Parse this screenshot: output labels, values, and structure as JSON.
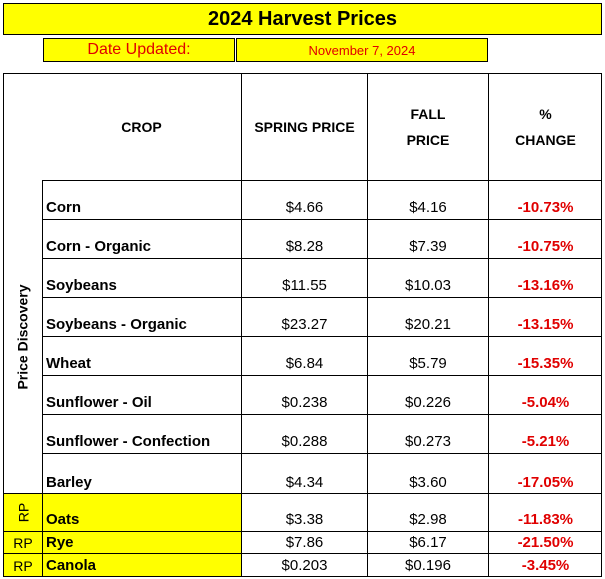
{
  "title": "2024 Harvest Prices",
  "date_label": "Date Updated:",
  "date_value": "November 7, 2024",
  "headers": {
    "crop": "CROP",
    "spring": "SPRING PRICE",
    "fall": "FALL\nPRICE",
    "change": "%\nCHANGE"
  },
  "side_label": "Price Discovery",
  "rows": [
    {
      "crop": "Corn",
      "spring": "$4.66",
      "fall": "$4.16",
      "change": "-10.73%",
      "tag": ""
    },
    {
      "crop": "Corn - Organic",
      "spring": "$8.28",
      "fall": "$7.39",
      "change": "-10.75%",
      "tag": ""
    },
    {
      "crop": "Soybeans",
      "spring": "$11.55",
      "fall": "$10.03",
      "change": "-13.16%",
      "tag": ""
    },
    {
      "crop": "Soybeans - Organic",
      "spring": "$23.27",
      "fall": "$20.21",
      "change": "-13.15%",
      "tag": ""
    },
    {
      "crop": "Wheat",
      "spring": "$6.84",
      "fall": "$5.79",
      "change": "-15.35%",
      "tag": ""
    },
    {
      "crop": "Sunflower - Oil",
      "spring": "$0.238",
      "fall": "$0.226",
      "change": "-5.04%",
      "tag": ""
    },
    {
      "crop": "Sunflower - Confection",
      "spring": "$0.288",
      "fall": "$0.273",
      "change": "-5.21%",
      "tag": ""
    },
    {
      "crop": "Barley",
      "spring": "$4.34",
      "fall": "$3.60",
      "change": "-17.05%",
      "tag": ""
    },
    {
      "crop": "Oats",
      "spring": "$3.38",
      "fall": "$2.98",
      "change": "-11.83%",
      "tag": "RP"
    },
    {
      "crop": "Rye",
      "spring": "$7.86",
      "fall": "$6.17",
      "change": "-21.50%",
      "tag": "RP"
    },
    {
      "crop": "Canola",
      "spring": "$0.203",
      "fall": "$0.196",
      "change": "-3.45%",
      "tag": "RP"
    }
  ],
  "colors": {
    "highlight": "#ffff00",
    "negative": "#e00000"
  }
}
